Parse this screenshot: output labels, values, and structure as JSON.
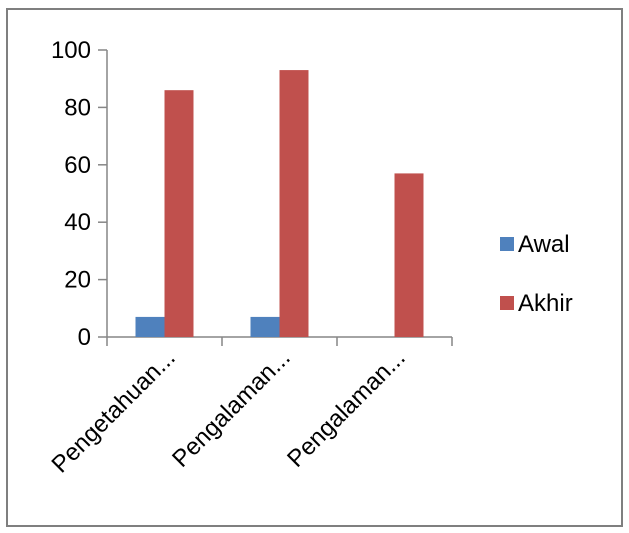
{
  "chart_data": {
    "type": "bar",
    "categories": [
      "Pengetahuan...",
      "Pengalaman...",
      "Pengalaman..."
    ],
    "series": [
      {
        "name": "Awal",
        "values": [
          7,
          7,
          0
        ],
        "color": "#4f81bd"
      },
      {
        "name": "Akhir",
        "values": [
          86,
          93,
          57
        ],
        "color": "#c0504d"
      }
    ],
    "ylim": [
      0,
      100
    ],
    "yticks": [
      0,
      20,
      40,
      60,
      80,
      100
    ],
    "grid": false,
    "legend_position": "right",
    "title": "",
    "xlabel": "",
    "ylabel": ""
  }
}
